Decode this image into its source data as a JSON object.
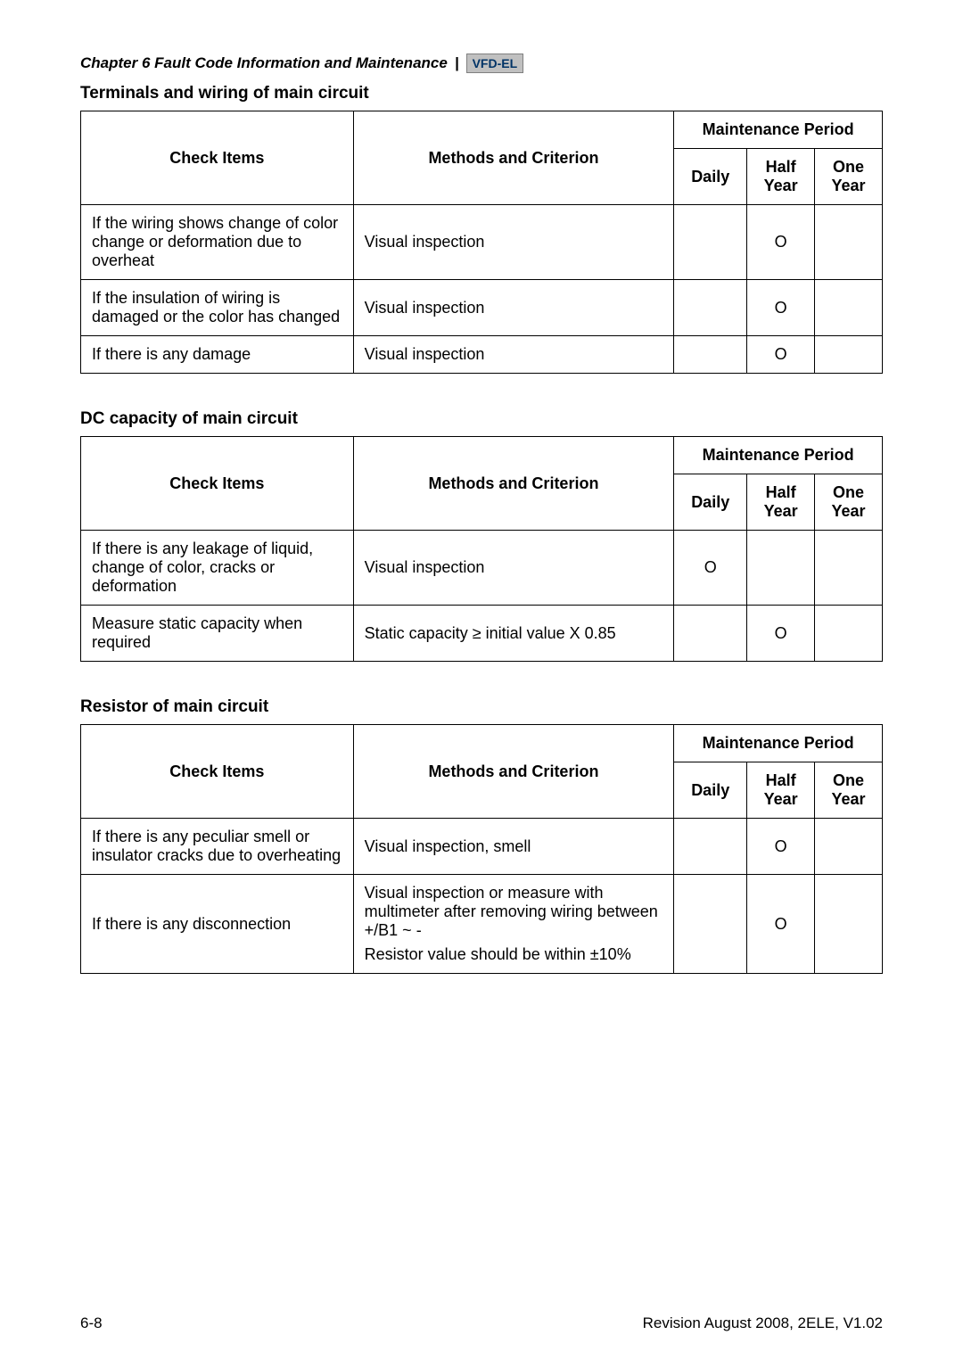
{
  "chapter": {
    "title": "Chapter 6 Fault Code Information and Maintenance",
    "separator": "|",
    "product_badge": "VFD-EL"
  },
  "common_headers": {
    "check_items": "Check Items",
    "methods": "Methods and Criterion",
    "period_group": "Maintenance Period",
    "daily": "Daily",
    "half_year": "Half Year",
    "one_year": "One Year"
  },
  "sections": [
    {
      "title": "Terminals and wiring of main circuit",
      "rows": [
        {
          "check": "If the wiring shows change of color change or deformation due to overheat",
          "method": "Visual inspection",
          "daily": "",
          "half": "O",
          "one": ""
        },
        {
          "check": "If the insulation of wiring is damaged or the color has changed",
          "method": "Visual inspection",
          "daily": "",
          "half": "O",
          "one": ""
        },
        {
          "check": "If there is any damage",
          "method": "Visual inspection",
          "daily": "",
          "half": "O",
          "one": ""
        }
      ]
    },
    {
      "title": "DC capacity of main circuit",
      "rows": [
        {
          "check": "If there is any leakage of liquid, change of color, cracks or deformation",
          "method": "Visual inspection",
          "daily": "O",
          "half": "",
          "one": ""
        },
        {
          "check": "Measure static capacity when required",
          "method": "Static capacity ≥ initial value X 0.85",
          "daily": "",
          "half": "O",
          "one": ""
        }
      ]
    },
    {
      "title": "Resistor of main circuit",
      "rows": [
        {
          "check": "If there is any peculiar smell or insulator cracks due to overheating",
          "method": "Visual inspection, smell",
          "daily": "",
          "half": "O",
          "one": ""
        },
        {
          "check": "If there is any disconnection",
          "method_lines": [
            "Visual inspection or measure with multimeter after removing wiring between +/B1 ~ -",
            "Resistor value should be within ±10%"
          ],
          "daily": "",
          "half": "O",
          "one": ""
        }
      ]
    }
  ],
  "footer": {
    "page": "6-8",
    "revision": "Revision August 2008, 2ELE, V1.02"
  }
}
